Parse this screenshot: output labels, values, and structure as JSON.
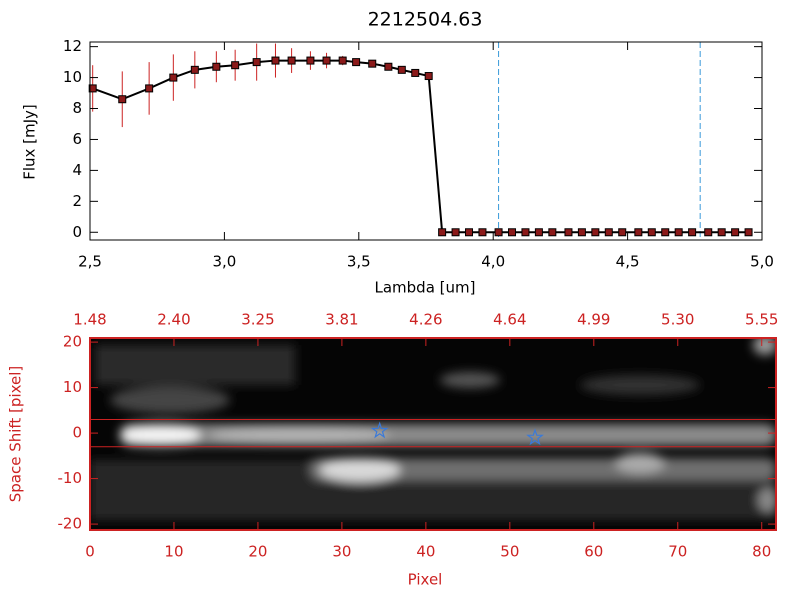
{
  "chart_data": [
    {
      "type": "line",
      "title": "2212504.63",
      "xlabel": "Lambda [um]",
      "ylabel": "Flux [mJy]",
      "x": [
        2.51,
        2.62,
        2.72,
        2.81,
        2.89,
        2.97,
        3.04,
        3.12,
        3.19,
        3.25,
        3.32,
        3.38,
        3.44,
        3.49,
        3.55,
        3.61,
        3.66,
        3.71,
        3.76,
        3.81,
        3.86,
        3.91,
        3.96,
        4.02,
        4.07,
        4.12,
        4.17,
        4.22,
        4.28,
        4.33,
        4.38,
        4.43,
        4.48,
        4.54,
        4.59,
        4.64,
        4.69,
        4.74,
        4.8,
        4.85,
        4.9,
        4.95
      ],
      "values": [
        9.3,
        8.6,
        9.3,
        10.0,
        10.5,
        10.7,
        10.8,
        11.0,
        11.1,
        11.1,
        11.1,
        11.1,
        11.1,
        11.0,
        10.9,
        10.7,
        10.5,
        10.3,
        10.1,
        0,
        0,
        0,
        0,
        0,
        0,
        0,
        0,
        0,
        0,
        0,
        0,
        0,
        0,
        0,
        0,
        0,
        0,
        0,
        0,
        0,
        0,
        0
      ],
      "errors": [
        1.5,
        1.8,
        1.7,
        1.5,
        1.2,
        1.0,
        1.0,
        1.2,
        1.1,
        0.8,
        0.6,
        0.5,
        0.3,
        0.2,
        0.2,
        0.2,
        0.2,
        0.2,
        0.2,
        0,
        0,
        0,
        0,
        0,
        0,
        0,
        0,
        0,
        0,
        0,
        0,
        0,
        0,
        0,
        0,
        0,
        0,
        0,
        0,
        0,
        0,
        0
      ],
      "color": "#000000",
      "marker_color": "#8b1a1a",
      "error_color": "#cc2222",
      "vlines": [
        4.02,
        4.77
      ],
      "vline_color": "#3a9ad9",
      "xlim": [
        2.5,
        5.0
      ],
      "xticks": [
        {
          "value": 2.5,
          "label": "2,5"
        },
        {
          "value": 3.0,
          "label": "3,0"
        },
        {
          "value": 3.5,
          "label": "3,5"
        },
        {
          "value": 4.0,
          "label": "4,0"
        },
        {
          "value": 4.5,
          "label": "4,5"
        },
        {
          "value": 5.0,
          "label": "5,0"
        }
      ],
      "ylim": [
        -0.5,
        12.3
      ],
      "yticks": [
        0,
        2,
        4,
        6,
        8,
        10,
        12
      ]
    },
    {
      "type": "image",
      "xlabel": "Pixel",
      "ylabel": "Space Shift [pixel]",
      "xlim": [
        0,
        81.7
      ],
      "xticks": [
        0,
        10,
        20,
        30,
        40,
        50,
        60,
        70,
        80
      ],
      "x2ticks": [
        {
          "value": 0,
          "label": "1.48"
        },
        {
          "value": 10,
          "label": "2.40"
        },
        {
          "value": 20,
          "label": "3.25"
        },
        {
          "value": 30,
          "label": "3.81"
        },
        {
          "value": 40,
          "label": "4.26"
        },
        {
          "value": 50,
          "label": "4.64"
        },
        {
          "value": 60,
          "label": "4.99"
        },
        {
          "value": 70,
          "label": "5.30"
        },
        {
          "value": 80,
          "label": "5.55"
        }
      ],
      "ylim": [
        -21.3,
        20.9
      ],
      "yticks": [
        -20,
        -10,
        0,
        10,
        20
      ],
      "hlines": [
        3,
        -3
      ],
      "hline_color": "#cc2222",
      "points": {
        "x": [
          34.5,
          53
        ],
        "y": [
          0.5,
          -1
        ]
      },
      "point_color": "#3a7ad9",
      "axis_color": "#cc2222"
    }
  ]
}
